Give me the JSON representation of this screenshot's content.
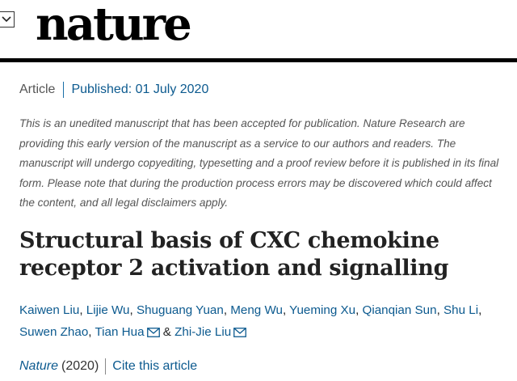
{
  "header": {
    "logo_text": "nature",
    "dropdown_icon": "chevron-down-icon"
  },
  "article_meta": {
    "type": "Article",
    "published": "Published: 01 July 2020"
  },
  "notice": "This is an unedited manuscript that has been accepted for publication. Nature Research are providing this early version of the manuscript as a service to our authors and readers. The manuscript will undergo copyediting, typesetting and a proof review before it is published in its final form. Please note that during the production process errors may be discovered which could affect the content, and all legal disclaimers apply.",
  "title": "Structural basis of CXC chemokine receptor 2 activation and signalling",
  "authors": [
    "Kaiwen Liu",
    "Lijie Wu",
    "Shuguang Yuan",
    "Meng Wu",
    "Yueming Xu",
    "Qianqian Sun",
    "Shu Li",
    "Suwen Zhao",
    "Tian Hua",
    "Zhi-Jie Liu"
  ],
  "author_separator": ", ",
  "author_and": "&",
  "citation": {
    "journal": "Nature",
    "year": "(2020)",
    "cite_label": "Cite this article"
  },
  "colors": {
    "link": "#0c5a8f",
    "rule": "#000000",
    "muted": "#555555"
  }
}
